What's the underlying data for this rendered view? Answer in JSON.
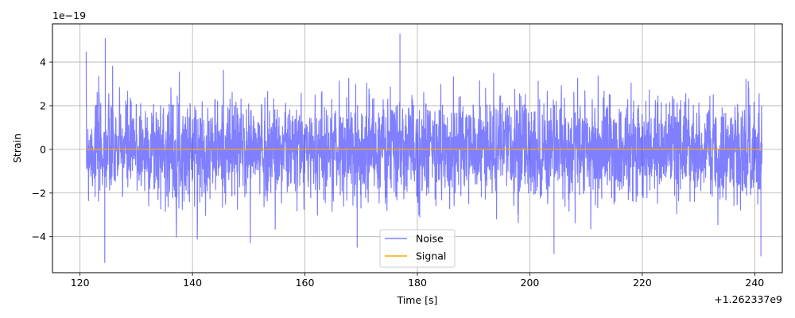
{
  "chart_data": {
    "type": "line",
    "title": "",
    "xlabel": "Time [s]",
    "ylabel": "Strain",
    "x_offset_label": "+1.262337e9",
    "y_scale_label": "1e−19",
    "xlim": [
      115.1,
      244.9
    ],
    "ylim": [
      -5.65,
      5.75
    ],
    "x_ticks": [
      120,
      140,
      160,
      180,
      200,
      220,
      240
    ],
    "y_ticks": [
      -4,
      -2,
      0,
      2,
      4
    ],
    "y_tick_labels": [
      "−4",
      "−2",
      "0",
      "2",
      "4"
    ],
    "grid": true,
    "legend_position": "bottom-center",
    "series": [
      {
        "name": "Noise",
        "color": "#0000ff",
        "opacity": 0.5,
        "x_range": [
          121.1,
          241.3
        ],
        "amplitude_envelope": {
          "x": [
            121.1,
            141.1,
            161.1,
            181.1,
            201.1,
            221.1,
            241.3
          ],
          "upper": [
            5.2,
            4.7,
            5.0,
            5.3,
            4.5,
            4.7,
            4.7
          ],
          "lower": [
            -5.2,
            -4.1,
            -4.5,
            -4.2,
            -4.8,
            -4.5,
            -5.0
          ]
        },
        "notable_peaks": [
          {
            "x": 124.5,
            "y": 5.1
          },
          {
            "x": 124.4,
            "y": -5.2
          },
          {
            "x": 176.9,
            "y": 5.3
          },
          {
            "x": 204.3,
            "y": -4.8
          },
          {
            "x": 169.3,
            "y": -4.5
          },
          {
            "x": 241.1,
            "y": -4.9
          }
        ]
      },
      {
        "name": "Signal",
        "color": "#ffa500",
        "x": [
          121.1,
          241.3
        ],
        "y": [
          0,
          0
        ]
      }
    ]
  }
}
